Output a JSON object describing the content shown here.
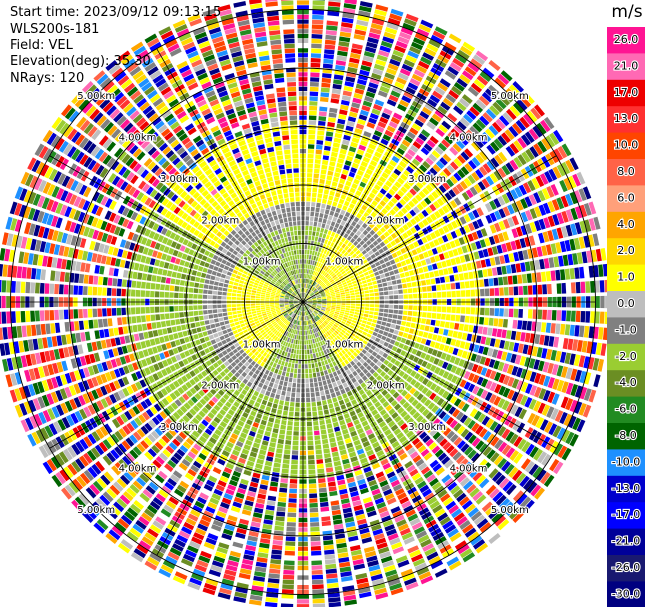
{
  "info": {
    "start_time": "Start time: 2023/09/12 09:13:15",
    "instrument": "WLS200s-181",
    "field": "Field: VEL",
    "elevation": "Elevation(deg): 35.30",
    "nrays": "NRays: 120"
  },
  "chart_data": {
    "type": "heatmap",
    "subtype": "ppi-polar",
    "field": "VEL",
    "units": "m/s",
    "nrays": 120,
    "elevation_deg": 35.3,
    "range_rings_km": [
      1.0,
      2.0,
      3.0,
      4.0,
      5.0
    ],
    "ring_label_text": [
      "1.00km",
      "2.00km",
      "3.00km",
      "4.00km",
      "5.00km"
    ],
    "colorbar": {
      "unit_label": "m/s",
      "ticks": [
        "26.0",
        "21.0",
        "17.0",
        "13.0",
        "10.0",
        "8.0",
        "6.0",
        "4.0",
        "2.0",
        "1.0",
        "0.0",
        "-1.0",
        "-2.0",
        "-4.0",
        "-6.0",
        "-8.0",
        "-10.0",
        "-13.0",
        "-17.0",
        "-21.0",
        "-26.0",
        "-30.0"
      ],
      "colors": [
        "#ff1493",
        "#ff69b4",
        "#ee0000",
        "#ff3030",
        "#ff4500",
        "#ff6347",
        "#ffa07a",
        "#ffa500",
        "#ffd700",
        "#ffff00",
        "#bebebe",
        "#808080",
        "#9acd32",
        "#6b8e23",
        "#228b22",
        "#006400",
        "#1e90ff",
        "#0000cd",
        "#0000ff",
        "#000099",
        "#191970",
        "#000080"
      ]
    },
    "velocity_regions": [
      {
        "r_km": [
          0.0,
          0.5
        ],
        "value": "mixed near zero (-2.0 to 1.0)"
      },
      {
        "r_km": [
          0.5,
          1.3
        ],
        "value": "yellow 1.0 to 2.0 (north-east and south-west), gray/olive 0.0 to -2.0 elsewhere"
      },
      {
        "r_km": [
          1.3,
          2.3
        ],
        "value": "gray 0.0 to -1.0 ring, yellow 1.0 to 2.0 in north and east, olive -1.0 to -2.0 in west and south"
      },
      {
        "r_km": [
          2.3,
          3.0
        ],
        "value": "yellow 1.0 to 2.0 north and east, olive -2.0 to -4.0 west and south"
      },
      {
        "r_km": [
          3.0,
          5.2
        ],
        "value": "noise, all colors"
      }
    ]
  }
}
